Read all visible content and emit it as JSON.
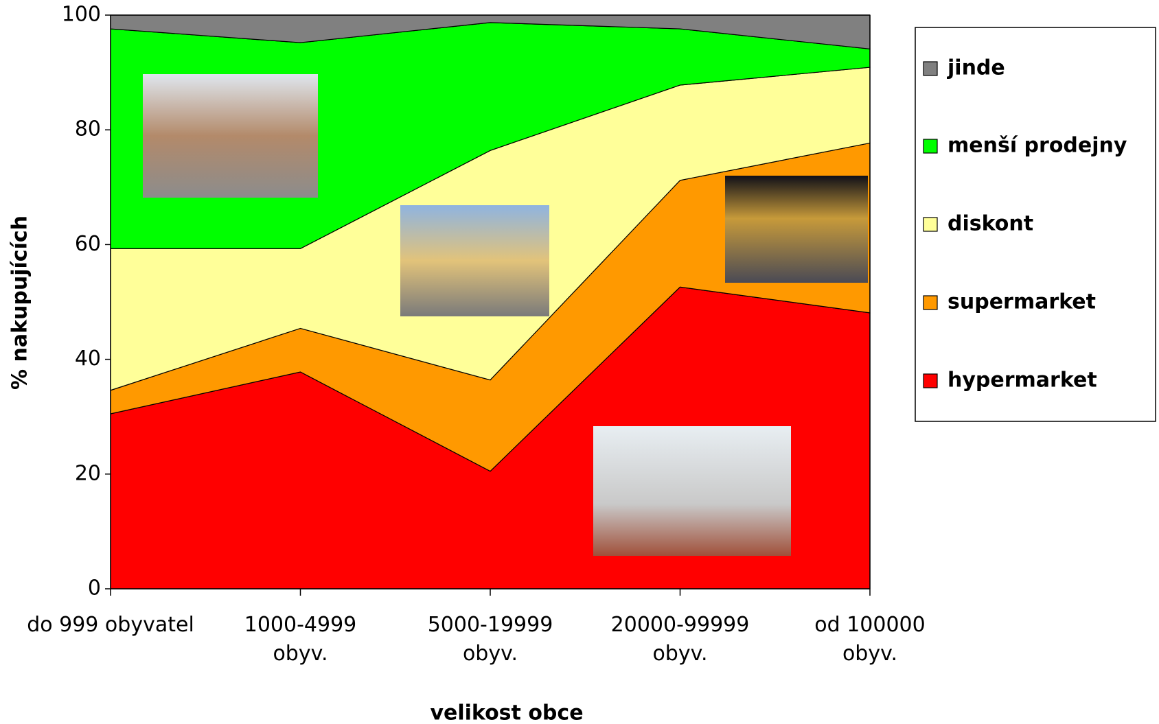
{
  "chart_data": {
    "type": "stacked-area",
    "y_label": "% nakupujících",
    "x_label": "velikost obce",
    "categories": [
      "do 999 obyvatel",
      "1000-4999\nobyv.",
      "5000-19999\nobyv.",
      "20000-99999\nobyv.",
      "od 100000\nobyv."
    ],
    "series": [
      {
        "name": "hypermarket",
        "color": "#ff0000",
        "values": [
          30.5,
          37.8,
          20.5,
          52.6,
          48.1
        ]
      },
      {
        "name": "supermarket",
        "color": "#ff9900",
        "values": [
          4.1,
          7.6,
          15.9,
          18.6,
          29.6
        ]
      },
      {
        "name": "diskont",
        "color": "#ffff99",
        "values": [
          24.7,
          13.9,
          40.0,
          16.6,
          13.2
        ]
      },
      {
        "name": "menší prodejny",
        "color": "#00ff00",
        "values": [
          38.3,
          35.9,
          22.3,
          9.8,
          3.2
        ]
      },
      {
        "name": "jinde",
        "color": "#808080",
        "values": [
          2.4,
          4.8,
          1.3,
          2.4,
          5.9
        ]
      }
    ],
    "ylim": [
      0,
      100
    ],
    "yticks": [
      0,
      20,
      40,
      60,
      80,
      100
    ],
    "legend": "right"
  }
}
